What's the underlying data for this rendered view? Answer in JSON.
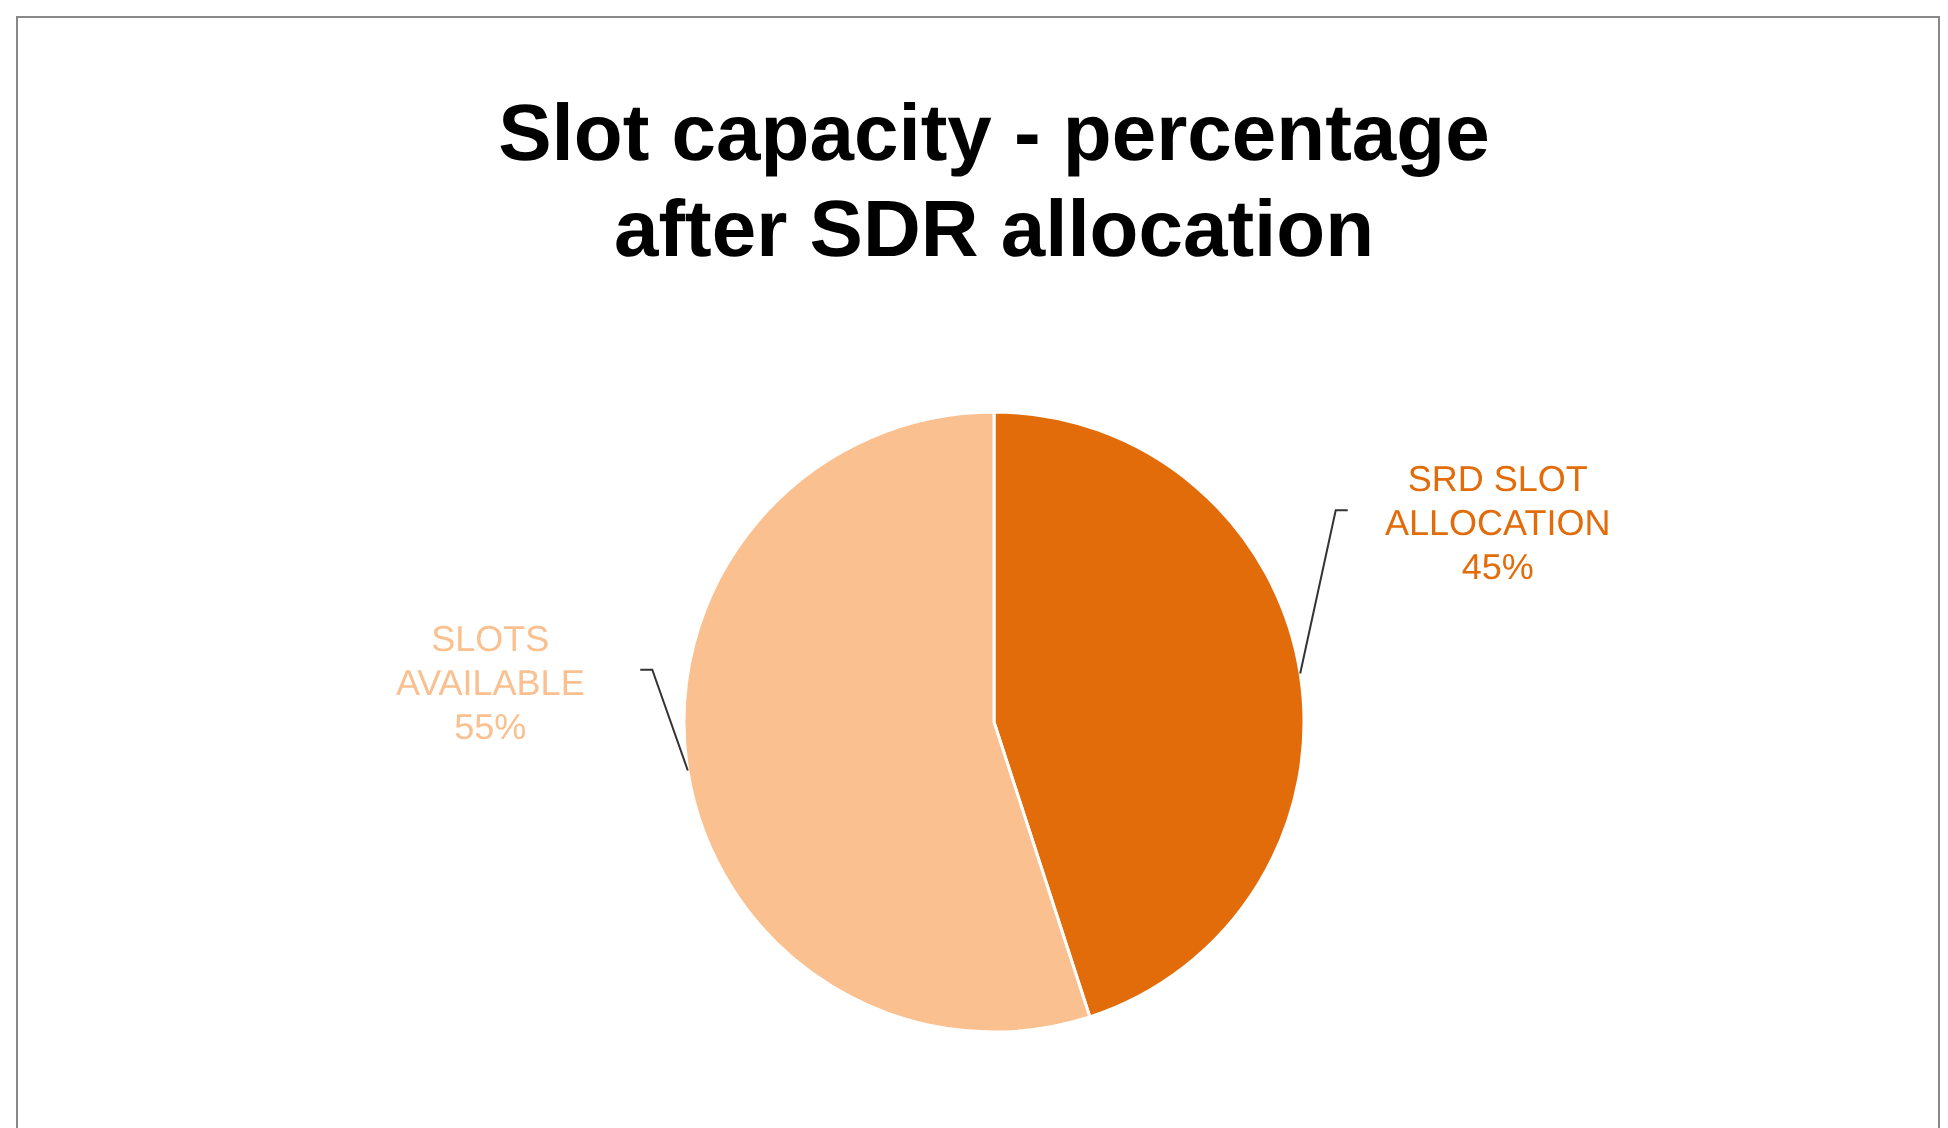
{
  "chart_data": {
    "type": "pie",
    "title": "Slot capacity - percentage after SDR allocation",
    "categories": [
      "SRD SLOT ALLOCATION",
      "SLOTS AVAILABLE"
    ],
    "values": [
      45,
      55
    ],
    "colors": [
      "#e36c0a",
      "#fac090"
    ],
    "value_labels": [
      "45%",
      "55%"
    ]
  }
}
